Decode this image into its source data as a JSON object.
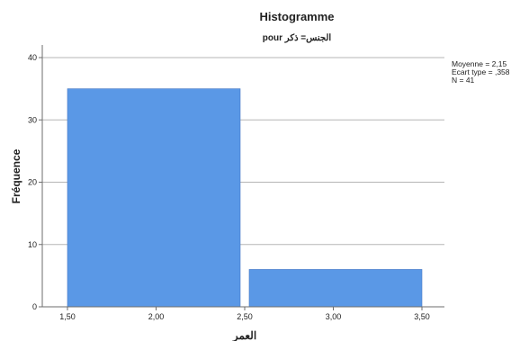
{
  "chart_data": {
    "type": "bar",
    "title": "Histogramme",
    "subtitle": "pour الجنس= ذكر",
    "xlabel": "العمر",
    "ylabel": "Fréquence",
    "xlim": [
      1.5,
      3.5
    ],
    "ylim": [
      0,
      40
    ],
    "x_ticks": [
      1.5,
      2.0,
      2.5,
      3.0,
      3.5
    ],
    "x_tick_labels": [
      "1,50",
      "2,00",
      "2,50",
      "3,00",
      "3,50"
    ],
    "y_ticks": [
      0,
      10,
      20,
      30,
      40
    ],
    "y_tick_labels": [
      "0",
      "10",
      "20",
      "30",
      "40"
    ],
    "bins": [
      {
        "from": 1.5,
        "to": 2.5,
        "value": 35
      },
      {
        "from": 2.5,
        "to": 3.5,
        "value": 6
      }
    ],
    "grid": "horizontal",
    "statistics": [
      "Moyenne = 2,15",
      "Ecart type = ,358",
      "N = 41"
    ],
    "colors": {
      "bar": "#5a98e6",
      "bar_edge": "#4679c4",
      "grid": "#b5b5b5",
      "axis": "#6e6e6e"
    }
  }
}
